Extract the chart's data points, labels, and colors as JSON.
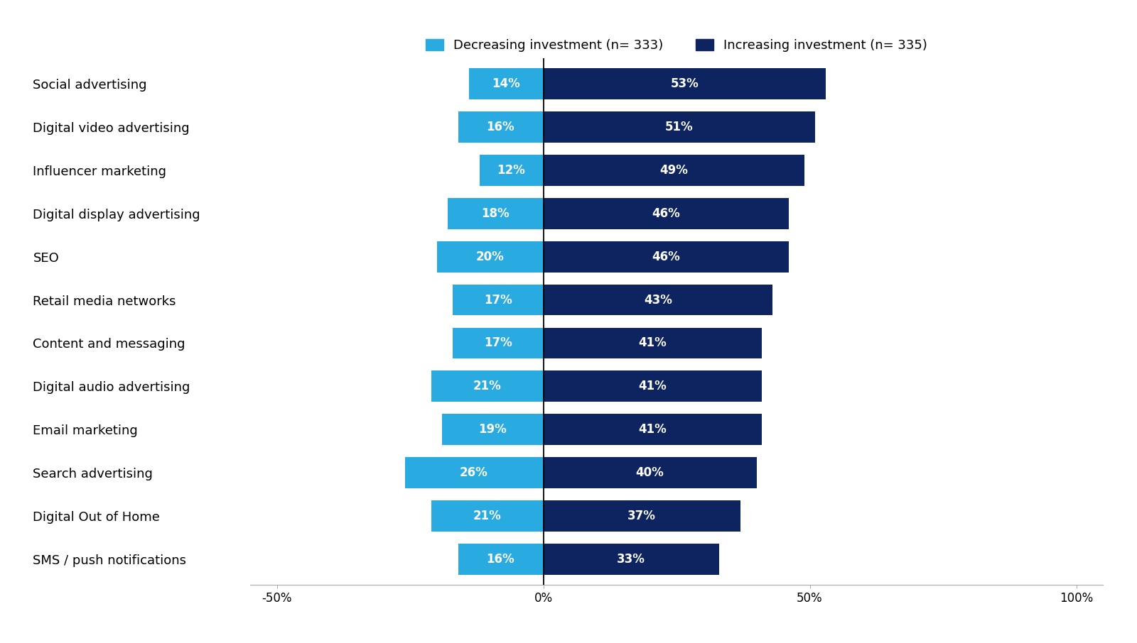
{
  "categories": [
    "Social advertising",
    "Digital video advertising",
    "Influencer marketing",
    "Digital display advertising",
    "SEO",
    "Retail media networks",
    "Content and messaging",
    "Digital audio advertising",
    "Email marketing",
    "Search advertising",
    "Digital Out of Home",
    "SMS / push notifications"
  ],
  "decreasing": [
    14,
    16,
    12,
    18,
    20,
    17,
    17,
    21,
    19,
    26,
    21,
    16
  ],
  "increasing": [
    53,
    51,
    49,
    46,
    46,
    43,
    41,
    41,
    41,
    40,
    37,
    33
  ],
  "decreasing_color": "#29ABE2",
  "increasing_color": "#0D2460",
  "legend_dec_label": "Decreasing investment (n= 333)",
  "legend_inc_label": "Increasing investment (n= 335)",
  "xlim": [
    -55,
    105
  ],
  "xticks": [
    -50,
    0,
    50,
    100
  ],
  "xticklabels": [
    "-50%",
    "0%",
    "50%",
    "100%"
  ],
  "bar_height": 0.72,
  "label_fontsize": 12,
  "tick_fontsize": 12,
  "category_fontsize": 13,
  "background_color": "#FFFFFF"
}
